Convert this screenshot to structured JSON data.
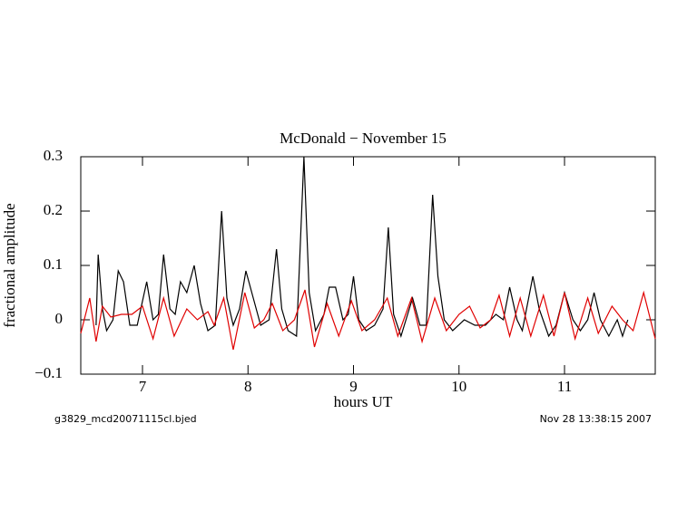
{
  "chart_data": {
    "type": "line",
    "title": "McDonald − November 15",
    "xlabel": "hours UT",
    "ylabel": "fractional amplitude",
    "footer_left": "g3829_mcd20071115cl.bjed",
    "footer_right": "Nov 28 13:38:15 2007",
    "xlim": [
      6.415,
      11.86
    ],
    "ylim": [
      -0.1,
      0.3
    ],
    "xticks": [
      7,
      8,
      9,
      10,
      11
    ],
    "yticks": [
      {
        "value": -0.1,
        "label": "−0.1"
      },
      0,
      0.1,
      0.2,
      0.3
    ],
    "series": [
      {
        "color": "#000000",
        "x": [
          6.56,
          6.58,
          6.62,
          6.66,
          6.72,
          6.77,
          6.82,
          6.88,
          6.95,
          7.04,
          7.1,
          7.15,
          7.2,
          7.26,
          7.31,
          7.36,
          7.42,
          7.49,
          7.55,
          7.62,
          7.69,
          7.75,
          7.8,
          7.86,
          7.92,
          7.98,
          8.05,
          8.12,
          8.2,
          8.27,
          8.32,
          8.38,
          8.46,
          8.53,
          8.58,
          8.64,
          8.72,
          8.77,
          8.83,
          8.9,
          8.95,
          9.0,
          9.05,
          9.12,
          9.2,
          9.28,
          9.33,
          9.38,
          9.45,
          9.56,
          9.63,
          9.69,
          9.75,
          9.8,
          9.86,
          9.94,
          10.05,
          10.15,
          10.25,
          10.35,
          10.42,
          10.48,
          10.55,
          10.6,
          10.7,
          10.76,
          10.85,
          10.92,
          11.0,
          11.08,
          11.15,
          11.22,
          11.28,
          11.34,
          11.42,
          11.5,
          11.55,
          11.6
        ],
        "values": [
          -0.01,
          0.12,
          0.02,
          -0.02,
          0.0,
          0.09,
          0.07,
          -0.01,
          -0.01,
          0.07,
          0.0,
          0.01,
          0.12,
          0.02,
          0.01,
          0.07,
          0.05,
          0.1,
          0.03,
          -0.02,
          -0.01,
          0.2,
          0.04,
          -0.01,
          0.02,
          0.09,
          0.04,
          -0.01,
          0.0,
          0.13,
          0.02,
          -0.02,
          -0.03,
          0.3,
          0.05,
          -0.02,
          0.01,
          0.06,
          0.06,
          0.0,
          0.01,
          0.08,
          0.0,
          -0.02,
          -0.01,
          0.02,
          0.17,
          0.01,
          -0.03,
          0.04,
          -0.01,
          -0.01,
          0.23,
          0.08,
          0.0,
          -0.02,
          0.0,
          -0.01,
          -0.01,
          0.01,
          0.0,
          0.06,
          0.0,
          -0.02,
          0.08,
          0.02,
          -0.03,
          -0.01,
          0.05,
          0.0,
          -0.02,
          0.0,
          0.05,
          0.0,
          -0.03,
          0.0,
          -0.03,
          0.0
        ]
      },
      {
        "color": "#e00000",
        "x": [
          6.415,
          6.5,
          6.56,
          6.62,
          6.7,
          6.8,
          6.9,
          7.0,
          7.1,
          7.2,
          7.3,
          7.42,
          7.52,
          7.62,
          7.68,
          7.77,
          7.86,
          7.97,
          8.06,
          8.15,
          8.23,
          8.33,
          8.44,
          8.54,
          8.63,
          8.75,
          8.86,
          8.98,
          9.08,
          9.2,
          9.32,
          9.42,
          9.55,
          9.65,
          9.77,
          9.88,
          10.0,
          10.1,
          10.2,
          10.3,
          10.38,
          10.48,
          10.58,
          10.68,
          10.8,
          10.9,
          11.0,
          11.1,
          11.22,
          11.32,
          11.45,
          11.55,
          11.65,
          11.75,
          11.86
        ],
        "values": [
          -0.025,
          0.04,
          -0.04,
          0.025,
          0.005,
          0.01,
          0.01,
          0.025,
          -0.035,
          0.04,
          -0.03,
          0.02,
          0.0,
          0.015,
          -0.01,
          0.04,
          -0.055,
          0.05,
          -0.015,
          0.0,
          0.03,
          -0.02,
          0.0,
          0.055,
          -0.05,
          0.03,
          -0.03,
          0.035,
          -0.02,
          0.0,
          0.04,
          -0.03,
          0.04,
          -0.04,
          0.04,
          -0.02,
          0.01,
          0.025,
          -0.015,
          0.0,
          0.045,
          -0.03,
          0.04,
          -0.03,
          0.045,
          -0.03,
          0.05,
          -0.035,
          0.04,
          -0.025,
          0.025,
          0.0,
          -0.02,
          0.05,
          -0.035
        ]
      }
    ]
  }
}
